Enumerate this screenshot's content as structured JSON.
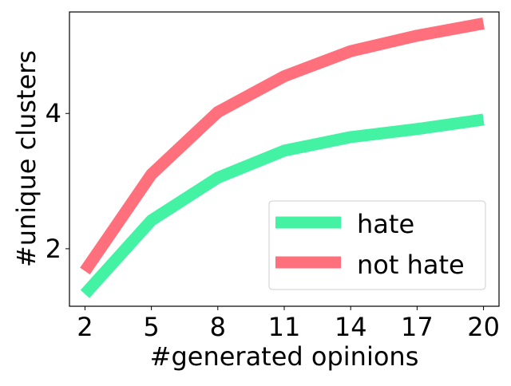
{
  "chart_data": {
    "type": "line",
    "title": "",
    "xlabel": "#generated opinions",
    "ylabel": "#unique clusters",
    "x": [
      2,
      5,
      8,
      11,
      14,
      17,
      20
    ],
    "xlim": [
      1.3,
      20.7
    ],
    "ylim": [
      1.15,
      5.5
    ],
    "x_ticks": [
      "2",
      "5",
      "8",
      "11",
      "14",
      "17",
      "20"
    ],
    "y_ticks": [
      2,
      4
    ],
    "y_tick_labels": [
      "2",
      "4"
    ],
    "grid": false,
    "legend_position": "lower-right",
    "series": [
      {
        "name": "hate",
        "color": "#44f2a4",
        "values": [
          1.33,
          2.42,
          3.05,
          3.45,
          3.65,
          3.77,
          3.91
        ]
      },
      {
        "name": "not hate",
        "color": "#ff6f7c",
        "values": [
          1.67,
          3.1,
          4.02,
          4.55,
          4.92,
          5.15,
          5.33
        ]
      }
    ]
  }
}
